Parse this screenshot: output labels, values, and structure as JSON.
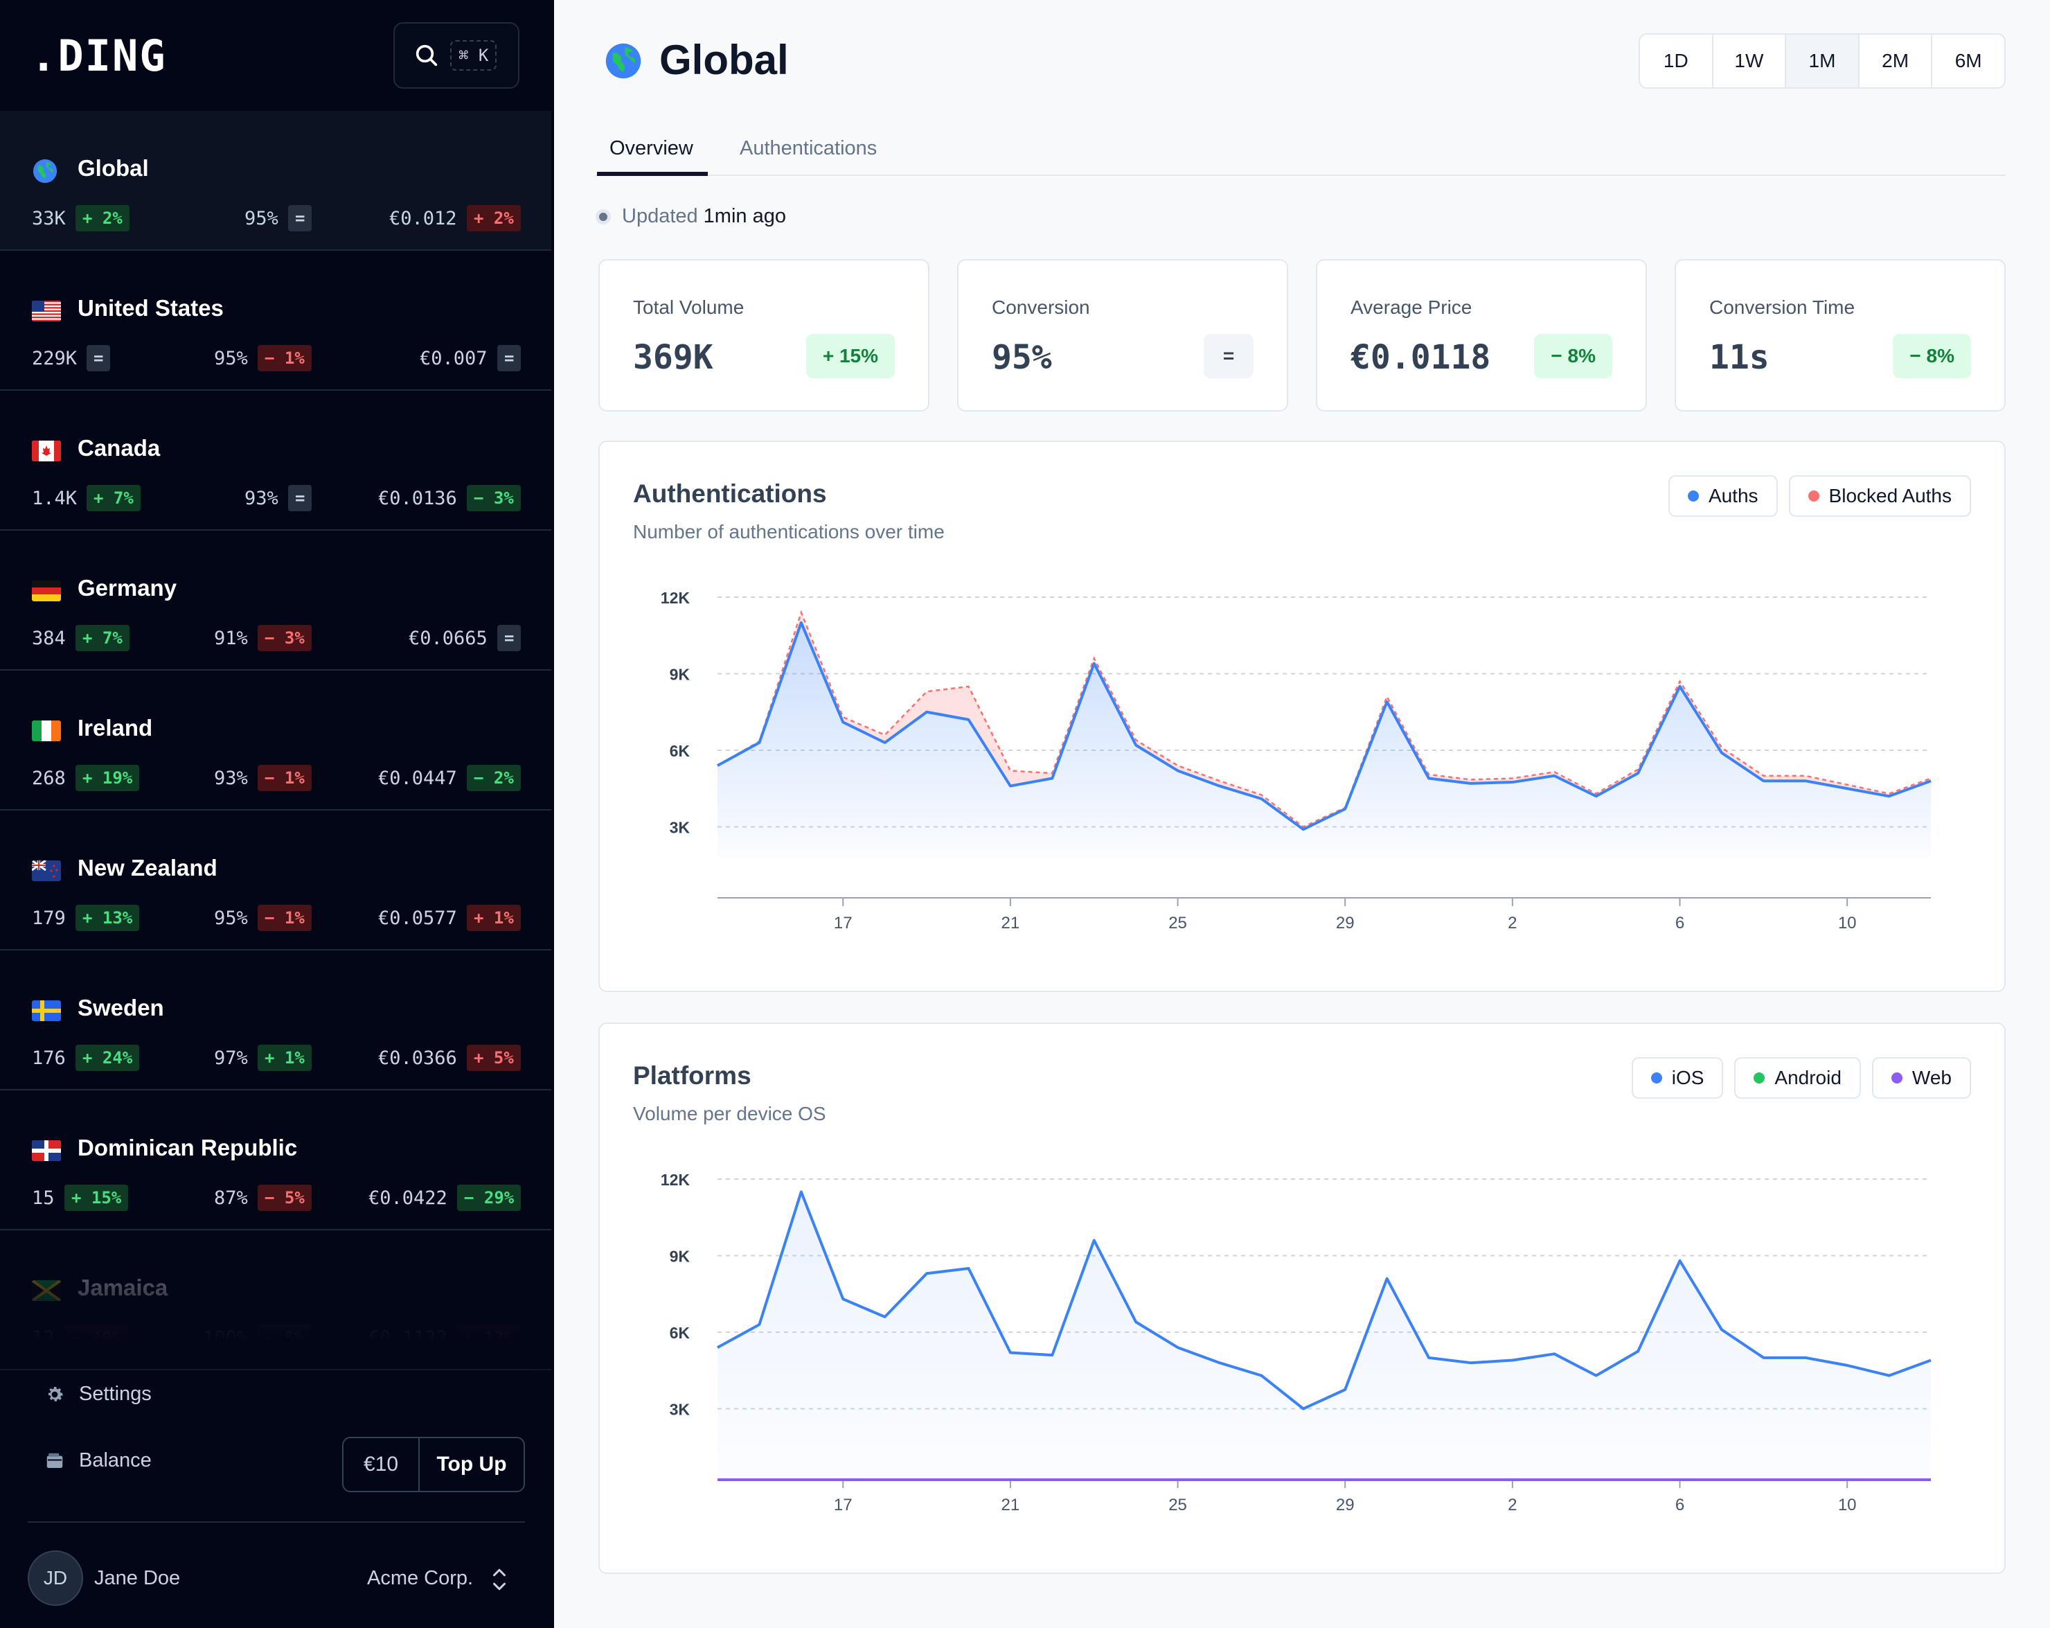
{
  "app": {
    "logo": ".DING",
    "search_shortcut": "⌘ K"
  },
  "sidebar": {
    "countries": [
      {
        "name": "Global",
        "flag": "globe-icon",
        "volume": "33K",
        "volume_change": "+ 2%",
        "volume_trend": "up",
        "conversion": "95%",
        "conversion_change": "=",
        "conversion_trend": "eq",
        "price": "€0.012",
        "price_change": "+ 2%",
        "price_trend": "down",
        "active": true
      },
      {
        "name": "United States",
        "flag": "flag-us-icon",
        "volume": "229K",
        "volume_change": "=",
        "volume_trend": "eq",
        "conversion": "95%",
        "conversion_change": "− 1%",
        "conversion_trend": "down",
        "price": "€0.007",
        "price_change": "=",
        "price_trend": "eq"
      },
      {
        "name": "Canada",
        "flag": "flag-ca-icon",
        "volume": "1.4K",
        "volume_change": "+ 7%",
        "volume_trend": "up",
        "conversion": "93%",
        "conversion_change": "=",
        "conversion_trend": "eq",
        "price": "€0.0136",
        "price_change": "− 3%",
        "price_trend": "up"
      },
      {
        "name": "Germany",
        "flag": "flag-de-icon",
        "volume": "384",
        "volume_change": "+ 7%",
        "volume_trend": "up",
        "conversion": "91%",
        "conversion_change": "− 3%",
        "conversion_trend": "down",
        "price": "€0.0665",
        "price_change": "=",
        "price_trend": "eq"
      },
      {
        "name": "Ireland",
        "flag": "flag-ie-icon",
        "volume": "268",
        "volume_change": "+ 19%",
        "volume_trend": "up",
        "conversion": "93%",
        "conversion_change": "− 1%",
        "conversion_trend": "down",
        "price": "€0.0447",
        "price_change": "− 2%",
        "price_trend": "up"
      },
      {
        "name": "New Zealand",
        "flag": "flag-nz-icon",
        "volume": "179",
        "volume_change": "+ 13%",
        "volume_trend": "up",
        "conversion": "95%",
        "conversion_change": "− 1%",
        "conversion_trend": "down",
        "price": "€0.0577",
        "price_change": "+ 1%",
        "price_trend": "down"
      },
      {
        "name": "Sweden",
        "flag": "flag-se-icon",
        "volume": "176",
        "volume_change": "+ 24%",
        "volume_trend": "up",
        "conversion": "97%",
        "conversion_change": "+ 1%",
        "conversion_trend": "up",
        "price": "€0.0366",
        "price_change": "+ 5%",
        "price_trend": "down"
      },
      {
        "name": "Dominican Republic",
        "flag": "flag-do-icon",
        "volume": "15",
        "volume_change": "+ 15%",
        "volume_trend": "up",
        "conversion": "87%",
        "conversion_change": "− 5%",
        "conversion_trend": "down",
        "price": "€0.0422",
        "price_change": "− 29%",
        "price_trend": "up"
      },
      {
        "name": "Jamaica",
        "flag": "flag-jm-icon",
        "volume": "12",
        "volume_change": "− 40%",
        "volume_trend": "down",
        "conversion": "100%",
        "conversion_change": "− 5%",
        "conversion_trend": "up",
        "price": "€0.1132",
        "price_change": "+ 13%",
        "price_trend": "down"
      }
    ],
    "settings_label": "Settings",
    "balance_label": "Balance",
    "balance_amount": "€10",
    "topup_label": "Top Up",
    "user": {
      "initials": "JD",
      "name": "Jane Doe",
      "org": "Acme Corp."
    }
  },
  "header": {
    "title": "Global",
    "ranges": [
      "1D",
      "1W",
      "1M",
      "2M",
      "6M"
    ],
    "selected_range": "1M"
  },
  "tabs": [
    {
      "label": "Overview",
      "active": true
    },
    {
      "label": "Authentications",
      "active": false
    }
  ],
  "updated": {
    "prefix": "Updated",
    "value": "1min ago"
  },
  "kpis": [
    {
      "label": "Total Volume",
      "value": "369K",
      "change": "+ 15%",
      "trend": "up"
    },
    {
      "label": "Conversion",
      "value": "95%",
      "change": "=",
      "trend": "eq"
    },
    {
      "label": "Average Price",
      "value": "€0.0118",
      "change": "− 8%",
      "trend": "up"
    },
    {
      "label": "Conversion Time",
      "value": "11s",
      "change": "− 8%",
      "trend": "up"
    }
  ],
  "colors": {
    "blue": "#3b82f6",
    "red": "#f87171",
    "green": "#22c55e",
    "purple": "#8b5cf6"
  },
  "chart_data": [
    {
      "type": "area",
      "title": "Authentications",
      "subtitle": "Number of authentications over time",
      "y_ticks": [
        "3K",
        "6K",
        "9K",
        "12K"
      ],
      "ylim": [
        0,
        12000
      ],
      "x_tick_labels": [
        "17",
        "21",
        "25",
        "29",
        "2",
        "6",
        "10"
      ],
      "x_tick_positions": [
        3,
        7,
        11,
        15,
        19,
        23,
        27
      ],
      "series": [
        {
          "name": "Auths",
          "color": "#3b82f6",
          "values": [
            5400,
            6300,
            11000,
            7100,
            6300,
            7500,
            7200,
            4600,
            4900,
            9400,
            6200,
            5200,
            4600,
            4100,
            2900,
            3700,
            7900,
            4900,
            4700,
            4750,
            5000,
            4200,
            5100,
            8500,
            5900,
            4800,
            4800,
            4500,
            4200,
            4800
          ]
        },
        {
          "name": "Blocked Auths",
          "color": "#f87171",
          "values": [
            5400,
            6350,
            11400,
            7300,
            6600,
            8300,
            8500,
            5200,
            5100,
            9600,
            6400,
            5400,
            4800,
            4250,
            3000,
            3750,
            8100,
            5050,
            4850,
            4900,
            5150,
            4300,
            5250,
            8700,
            6100,
            5000,
            5000,
            4650,
            4300,
            4900
          ]
        }
      ],
      "grid": true,
      "legend": "top-right"
    },
    {
      "type": "line",
      "title": "Platforms",
      "subtitle": "Volume per device OS",
      "y_ticks": [
        "3K",
        "6K",
        "9K",
        "12K"
      ],
      "ylim": [
        0,
        12000
      ],
      "x_tick_labels": [
        "17",
        "21",
        "25",
        "29",
        "2",
        "6",
        "10"
      ],
      "x_tick_positions": [
        3,
        7,
        11,
        15,
        19,
        23,
        27
      ],
      "series": [
        {
          "name": "iOS",
          "color": "#3b82f6",
          "values": [
            5400,
            6300,
            11500,
            7300,
            6600,
            8300,
            8500,
            5200,
            5100,
            9600,
            6400,
            5400,
            4800,
            4300,
            3000,
            3750,
            8100,
            5000,
            4800,
            4900,
            5150,
            4300,
            5250,
            8800,
            6100,
            5000,
            5000,
            4700,
            4300,
            4900
          ]
        },
        {
          "name": "Android",
          "color": "#22c55e",
          "values": [
            0,
            0,
            0,
            0,
            0,
            0,
            0,
            0,
            0,
            0,
            0,
            0,
            0,
            0,
            0,
            0,
            0,
            0,
            0,
            0,
            0,
            0,
            0,
            0,
            0,
            0,
            0,
            0,
            0,
            0
          ]
        },
        {
          "name": "Web",
          "color": "#8b5cf6",
          "values": [
            0,
            0,
            0,
            0,
            0,
            0,
            0,
            0,
            0,
            0,
            0,
            0,
            0,
            0,
            0,
            0,
            0,
            0,
            0,
            0,
            0,
            0,
            0,
            0,
            0,
            0,
            0,
            0,
            0,
            0
          ]
        }
      ],
      "grid": true,
      "legend": "top-right"
    }
  ]
}
